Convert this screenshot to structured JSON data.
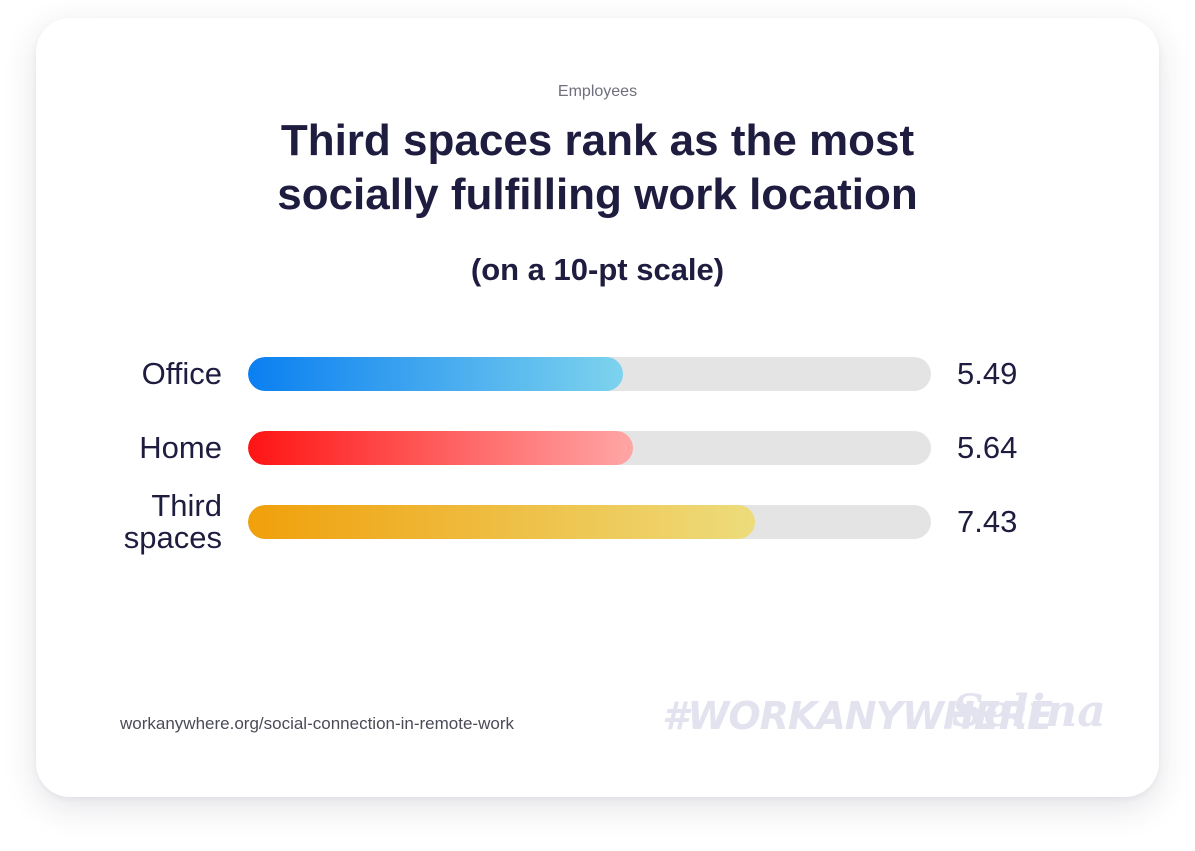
{
  "header": {
    "eyebrow": "Employees",
    "title_line1": "Third spaces rank as the most",
    "title_line2": "socially fulfilling work location",
    "subtitle": "(on a 10-pt scale)"
  },
  "chart_data": {
    "type": "bar",
    "orientation": "horizontal",
    "categories": [
      "Office",
      "Home",
      "Third spaces"
    ],
    "category_lines": [
      [
        "Office"
      ],
      [
        "Home"
      ],
      [
        "Third",
        "spaces"
      ]
    ],
    "values": [
      5.49,
      5.64,
      7.43
    ],
    "value_labels": [
      "5.49",
      "5.64",
      "7.43"
    ],
    "xlim": [
      0,
      10
    ],
    "gradients": [
      [
        "#0a7ff0",
        "#7dd3ee"
      ],
      [
        "#ff1414",
        "#ffa6a6"
      ],
      [
        "#f0a00a",
        "#eddc7c"
      ]
    ],
    "track_color": "#e4e4e4",
    "grid": false,
    "legend": "none"
  },
  "footer": {
    "source": "workanywhere.org/social-connection-in-remote-work",
    "hashtag": "#WORKANYWHERE",
    "brand": "Selina"
  }
}
